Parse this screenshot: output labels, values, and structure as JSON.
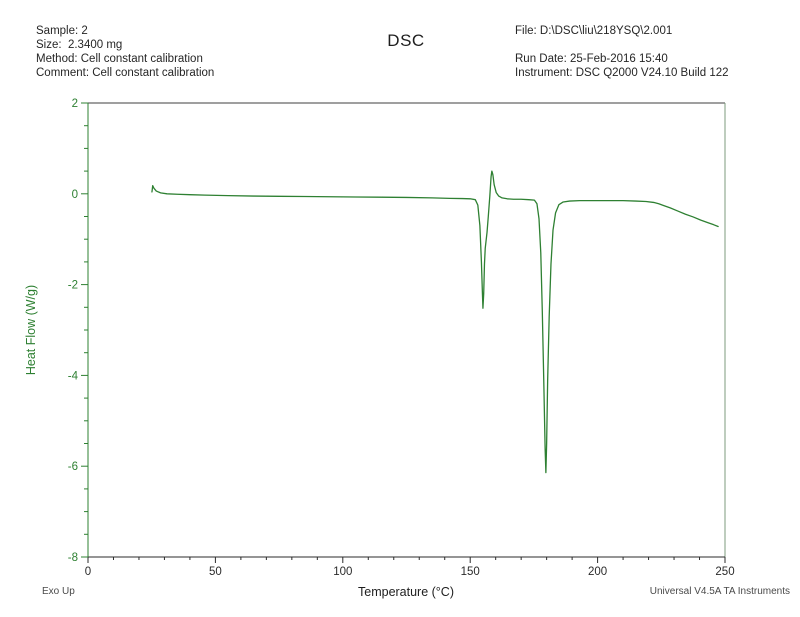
{
  "header": {
    "sample": "Sample: 2",
    "size": "Size:  2.3400 mg",
    "method": "Method: Cell constant calibration",
    "comment": "Comment: Cell constant calibration",
    "title": "DSC",
    "file": "File: D:\\DSC\\liu\\218YSQ\\2.001",
    "run_date": "Run Date: 25-Feb-2016 15:40",
    "instrument": "Instrument: DSC Q2000 V24.10 Build 122"
  },
  "footer": {
    "exo_label": "Exo Up",
    "credit": "Universal V4.5A TA Instruments"
  },
  "chart_data": {
    "type": "line",
    "title": "DSC",
    "xlabel": "Temperature (°C)",
    "ylabel": "Heat Flow (W/g)",
    "xlim": [
      0,
      250
    ],
    "ylim": [
      -8,
      2
    ],
    "x_major_step": 50,
    "x_minor_step": 10,
    "y_major_step": 2,
    "y_minor_step": 0.5,
    "x_tick_labels": [
      "0",
      "50",
      "100",
      "150",
      "200",
      "250"
    ],
    "y_tick_labels": [
      "2",
      "0",
      "-2",
      "-4",
      "-6",
      "-8"
    ],
    "line_color": "#2e8032",
    "y_axis_color": "#2e8032",
    "x_axis_color": "#2b2b2b",
    "grid": false,
    "legend": "none",
    "annotations": {
      "exo_direction": "Exo Up",
      "peak1": {
        "temp_c": 155.0,
        "min_heat_flow_wg": -2.52,
        "overshoot_temp_c": 158.5,
        "overshoot_heat_flow_wg": 0.5
      },
      "peak2": {
        "temp_c": 179.7,
        "min_heat_flow_wg": -6.14
      }
    },
    "series": [
      {
        "name": "Heat Flow (W/g)",
        "points": [
          [
            25.1,
            0.04
          ],
          [
            25.4,
            0.18
          ],
          [
            25.9,
            0.12
          ],
          [
            26.8,
            0.06
          ],
          [
            28.5,
            0.02
          ],
          [
            31,
            0.0
          ],
          [
            35,
            -0.01
          ],
          [
            40,
            -0.02
          ],
          [
            46,
            -0.03
          ],
          [
            55,
            -0.04
          ],
          [
            65,
            -0.05
          ],
          [
            75,
            -0.055
          ],
          [
            85,
            -0.06
          ],
          [
            95,
            -0.065
          ],
          [
            105,
            -0.07
          ],
          [
            115,
            -0.075
          ],
          [
            125,
            -0.08
          ],
          [
            135,
            -0.09
          ],
          [
            142,
            -0.1
          ],
          [
            147,
            -0.105
          ],
          [
            150,
            -0.11
          ],
          [
            152,
            -0.13
          ],
          [
            153,
            -0.25
          ],
          [
            153.8,
            -0.7
          ],
          [
            154.4,
            -1.5
          ],
          [
            154.8,
            -2.2
          ],
          [
            155.0,
            -2.52
          ],
          [
            155.3,
            -2.2
          ],
          [
            155.6,
            -1.55
          ],
          [
            155.9,
            -1.2
          ],
          [
            156.2,
            -1.05
          ],
          [
            156.6,
            -0.85
          ],
          [
            157.1,
            -0.5
          ],
          [
            157.7,
            -0.05
          ],
          [
            158.2,
            0.38
          ],
          [
            158.5,
            0.5
          ],
          [
            158.9,
            0.42
          ],
          [
            159.4,
            0.2
          ],
          [
            160.2,
            0.03
          ],
          [
            161.2,
            -0.05
          ],
          [
            162.5,
            -0.09
          ],
          [
            164.5,
            -0.11
          ],
          [
            167,
            -0.12
          ],
          [
            170,
            -0.12
          ],
          [
            173,
            -0.13
          ],
          [
            175.2,
            -0.14
          ],
          [
            176.2,
            -0.22
          ],
          [
            177.0,
            -0.55
          ],
          [
            177.7,
            -1.3
          ],
          [
            178.3,
            -2.6
          ],
          [
            178.9,
            -4.2
          ],
          [
            179.4,
            -5.6
          ],
          [
            179.7,
            -6.14
          ],
          [
            180.0,
            -5.5
          ],
          [
            180.4,
            -4.1
          ],
          [
            181.0,
            -2.7
          ],
          [
            181.7,
            -1.55
          ],
          [
            182.5,
            -0.8
          ],
          [
            183.5,
            -0.42
          ],
          [
            184.8,
            -0.24
          ],
          [
            186.5,
            -0.18
          ],
          [
            189,
            -0.16
          ],
          [
            193,
            -0.15
          ],
          [
            198,
            -0.15
          ],
          [
            204,
            -0.15
          ],
          [
            210,
            -0.15
          ],
          [
            215,
            -0.16
          ],
          [
            219,
            -0.17
          ],
          [
            222,
            -0.19
          ],
          [
            224,
            -0.22
          ],
          [
            226,
            -0.26
          ],
          [
            228.5,
            -0.31
          ],
          [
            231.5,
            -0.38
          ],
          [
            234.5,
            -0.45
          ],
          [
            237.5,
            -0.51
          ],
          [
            240.5,
            -0.58
          ],
          [
            243.5,
            -0.64
          ],
          [
            245.5,
            -0.68
          ],
          [
            247.3,
            -0.72
          ]
        ]
      }
    ]
  }
}
